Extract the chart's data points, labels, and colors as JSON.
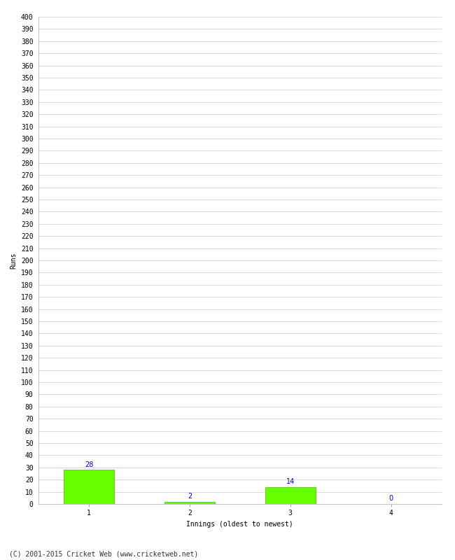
{
  "categories": [
    1,
    2,
    3,
    4
  ],
  "values": [
    28,
    2,
    14,
    0
  ],
  "bar_color": "#66ff00",
  "bar_edge_color": "#44bb00",
  "value_label_color": "#0000cc",
  "xlabel": "Innings (oldest to newest)",
  "ylabel": "Runs",
  "ylim": [
    0,
    400
  ],
  "ytick_step": 10,
  "background_color": "#ffffff",
  "grid_color": "#cccccc",
  "footer": "(C) 2001-2015 Cricket Web (www.cricketweb.net)",
  "value_fontsize": 7,
  "axis_fontsize": 7,
  "ylabel_fontsize": 7,
  "xlabel_fontsize": 7,
  "footer_fontsize": 7
}
